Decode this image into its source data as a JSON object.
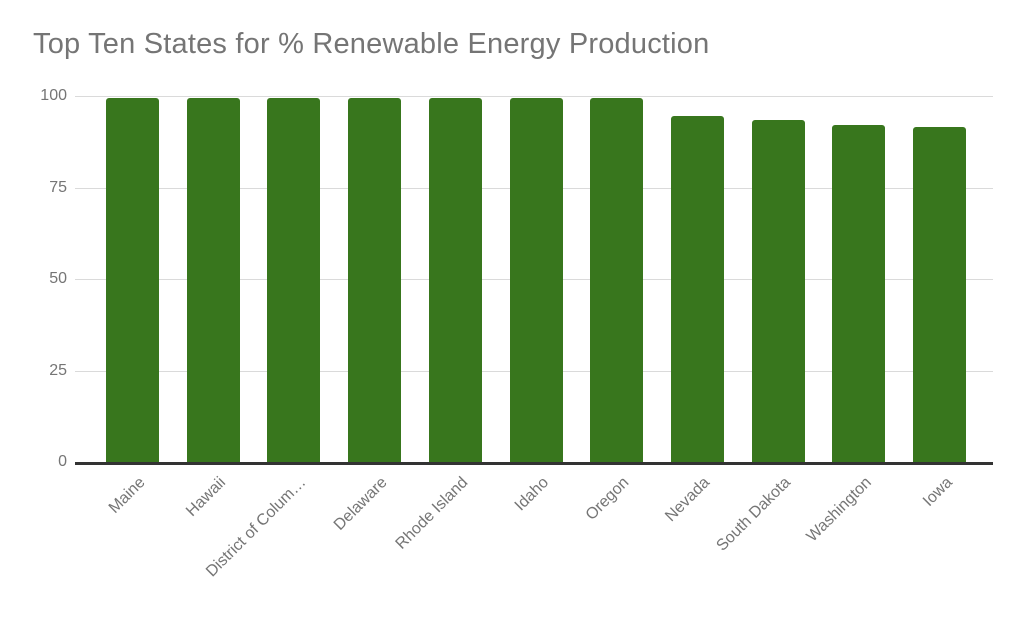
{
  "colors": {
    "background": "#ffffff",
    "bar": "#38761d",
    "title_text": "#757575",
    "axis_text": "#757575",
    "gridline": "#dadada",
    "baseline": "#333333"
  },
  "chart_data": {
    "type": "bar",
    "title": "Top Ten States for % Renewable Energy Production",
    "categories": [
      "Maine",
      "Hawaii",
      "District of Colum…",
      "Delaware",
      "Rhode Island",
      "Idaho",
      "Oregon",
      "Nevada",
      "South Dakota",
      "Washington",
      "Iowa"
    ],
    "values": [
      99.5,
      99.5,
      99.5,
      99.5,
      99.5,
      99.5,
      99.5,
      94.5,
      93.5,
      92,
      91.5
    ],
    "xlabel": "",
    "ylabel": "",
    "ylim": [
      0,
      100
    ],
    "yticks": [
      0,
      25,
      50,
      75,
      100
    ],
    "grid": true,
    "legend_position": "none",
    "bar_color": "#38761d",
    "x_tick_rotation_deg": -45
  }
}
